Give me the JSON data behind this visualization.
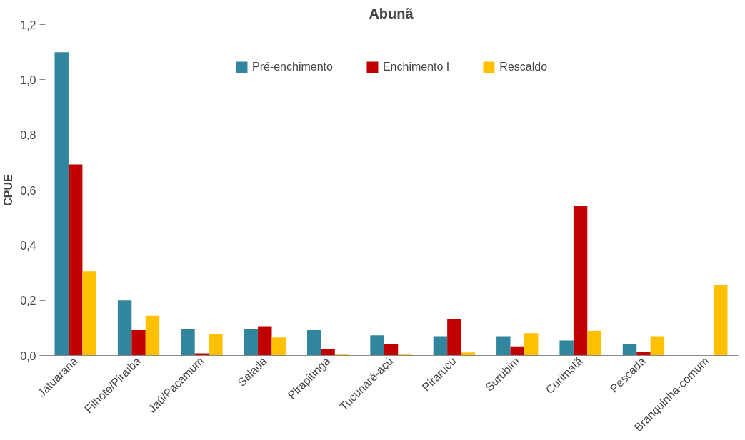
{
  "chart_data": {
    "type": "bar",
    "title": "Abunã",
    "ylabel": "CPUE",
    "categories": [
      "Jatuarana",
      "Filhote/Piraíba",
      "Jaú/Pacamum",
      "Salada",
      "Pirapitinga",
      "Tucunaré-açú",
      "Pirarucu",
      "Surubim",
      "Curimatã",
      "Pescada",
      "Branquinha-comum"
    ],
    "series": [
      {
        "name": "Pré-enchimento",
        "color": "#31859c",
        "values": [
          1.1,
          0.2,
          0.095,
          0.095,
          0.092,
          0.073,
          0.07,
          0.07,
          0.054,
          0.041,
          null
        ]
      },
      {
        "name": "Enchimento I",
        "color": "#c00000",
        "values": [
          0.693,
          0.092,
          0.008,
          0.106,
          0.022,
          0.041,
          0.133,
          0.033,
          0.542,
          0.014,
          null
        ]
      },
      {
        "name": "Rescaldo",
        "color": "#ffc000",
        "values": [
          0.306,
          0.144,
          0.079,
          0.065,
          0.003,
          0.003,
          0.011,
          0.081,
          0.089,
          0.07,
          0.255
        ]
      }
    ],
    "ylim": [
      0,
      1.2
    ],
    "yticks": [
      {
        "value": 0,
        "label": "0,0"
      },
      {
        "value": 0.2,
        "label": "0,2"
      },
      {
        "value": 0.4,
        "label": "0,4"
      },
      {
        "value": 0.6,
        "label": "0,6"
      },
      {
        "value": 0.8,
        "label": "0,8"
      },
      {
        "value": 1.0,
        "label": "1,0"
      },
      {
        "value": 1.2,
        "label": "1,2"
      }
    ],
    "grid": false,
    "legend": "top"
  }
}
